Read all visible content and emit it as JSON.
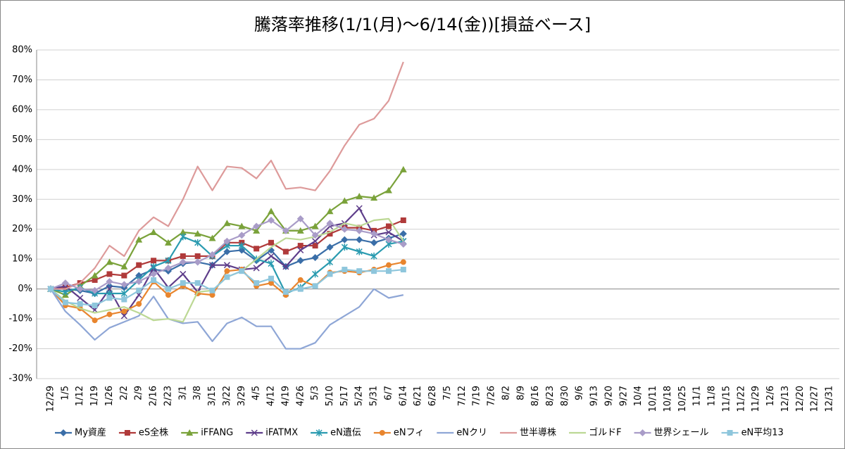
{
  "chart_data": {
    "type": "line",
    "title": "騰落率推移(1/1(月)～6/14(金))[損益ベース]",
    "categories": [
      "12/29",
      "1/5",
      "1/12",
      "1/19",
      "1/26",
      "2/2",
      "2/9",
      "2/16",
      "2/23",
      "3/1",
      "3/8",
      "3/15",
      "3/22",
      "3/29",
      "4/5",
      "4/12",
      "4/19",
      "4/26",
      "5/3",
      "5/10",
      "5/17",
      "5/24",
      "5/31",
      "6/7",
      "6/14",
      "6/21",
      "6/28",
      "7/5",
      "7/12",
      "7/19",
      "7/26",
      "8/2",
      "8/9",
      "8/16",
      "8/23",
      "8/30",
      "9/6",
      "9/13",
      "9/20",
      "9/27",
      "10/4",
      "10/11",
      "10/18",
      "10/25",
      "11/1",
      "11/8",
      "11/15",
      "11/22",
      "11/29",
      "12/6",
      "12/13",
      "12/20",
      "12/27",
      "12/31"
    ],
    "ylim": [
      -30,
      80
    ],
    "yticks": [
      {
        "value": -30,
        "label": "-30%"
      },
      {
        "value": -20,
        "label": "-20%"
      },
      {
        "value": -10,
        "label": "-10%"
      },
      {
        "value": 0,
        "label": "0%"
      },
      {
        "value": 10,
        "label": "10%"
      },
      {
        "value": 20,
        "label": "20%"
      },
      {
        "value": 30,
        "label": "30%"
      },
      {
        "value": 40,
        "label": "40%"
      },
      {
        "value": 50,
        "label": "50%"
      },
      {
        "value": 60,
        "label": "60%"
      },
      {
        "value": 70,
        "label": "70%"
      },
      {
        "value": 80,
        "label": "80%"
      }
    ],
    "grid": true,
    "legend": "bottom",
    "series": [
      {
        "name": "My資産",
        "color": "#3a6ea8",
        "marker": "diamond",
        "values": [
          0,
          0,
          -0.5,
          -1.5,
          1,
          0.5,
          4.5,
          6.5,
          6,
          8.5,
          9,
          8,
          12.5,
          13,
          9.5,
          13,
          7.5,
          9.5,
          10.5,
          14,
          16.5,
          16.5,
          15.5,
          17,
          18.5,
          null,
          null,
          null,
          null,
          null,
          null,
          null,
          null,
          null,
          null,
          null,
          null,
          null,
          null,
          null,
          null,
          null,
          null,
          null,
          null,
          null,
          null,
          null,
          null,
          null,
          null,
          null,
          null,
          null
        ]
      },
      {
        "name": "eS全株",
        "color": "#b03a3a",
        "marker": "square",
        "values": [
          0,
          0.5,
          2,
          3,
          5,
          4.5,
          8,
          9.5,
          9.5,
          11,
          11,
          11,
          15.5,
          15.5,
          13.5,
          15.5,
          12.5,
          14.5,
          14.5,
          18.5,
          20.5,
          20.5,
          19.5,
          21,
          23,
          null,
          null,
          null,
          null,
          null,
          null,
          null,
          null,
          null,
          null,
          null,
          null,
          null,
          null,
          null,
          null,
          null,
          null,
          null,
          null,
          null,
          null,
          null,
          null,
          null,
          null,
          null,
          null,
          null
        ]
      },
      {
        "name": "iFFANG",
        "color": "#7aa23a",
        "marker": "triangle",
        "values": [
          0,
          -2,
          1,
          4.5,
          9,
          7.5,
          16.5,
          19,
          15.5,
          19,
          18.5,
          17,
          22,
          21,
          19.5,
          26,
          19.5,
          19.5,
          21,
          26,
          29.5,
          31,
          30.5,
          33,
          40,
          null,
          null,
          null,
          null,
          null,
          null,
          null,
          null,
          null,
          null,
          null,
          null,
          null,
          null,
          null,
          null,
          null,
          null,
          null,
          null,
          null,
          null,
          null,
          null,
          null,
          null,
          null,
          null,
          null
        ]
      },
      {
        "name": "iFATMX",
        "color": "#5e3d8a",
        "marker": "x",
        "values": [
          0,
          1,
          -3,
          -7,
          0,
          -9,
          -2,
          7,
          0.5,
          5,
          -1,
          8,
          8,
          6.5,
          7,
          11,
          7.5,
          13,
          16,
          21,
          22,
          27,
          18,
          19,
          16,
          null,
          null,
          null,
          null,
          null,
          null,
          null,
          null,
          null,
          null,
          null,
          null,
          null,
          null,
          null,
          null,
          null,
          null,
          null,
          null,
          null,
          null,
          null,
          null,
          null,
          null,
          null,
          null,
          null
        ]
      },
      {
        "name": "eN遺伝",
        "color": "#2a9bb0",
        "marker": "star",
        "values": [
          0,
          -1,
          0.5,
          -1.5,
          -1.5,
          -1.5,
          3,
          7.5,
          9.5,
          17.5,
          15.5,
          11,
          14.5,
          14.5,
          10,
          8.5,
          -1.5,
          0.5,
          5,
          9,
          14,
          12.5,
          11,
          15,
          16,
          null,
          null,
          null,
          null,
          null,
          null,
          null,
          null,
          null,
          null,
          null,
          null,
          null,
          null,
          null,
          null,
          null,
          null,
          null,
          null,
          null,
          null,
          null,
          null,
          null,
          null,
          null,
          null,
          null
        ]
      },
      {
        "name": "eNフィ",
        "color": "#e8852e",
        "marker": "circle",
        "values": [
          0,
          -5.5,
          -6.5,
          -10.5,
          -8.5,
          -7.5,
          -5,
          2.5,
          -2,
          1,
          -1.5,
          -2,
          6,
          6.5,
          1,
          2,
          -2,
          3,
          1,
          5.5,
          6,
          5.5,
          6.5,
          8,
          9,
          null,
          null,
          null,
          null,
          null,
          null,
          null,
          null,
          null,
          null,
          null,
          null,
          null,
          null,
          null,
          null,
          null,
          null,
          null,
          null,
          null,
          null,
          null,
          null,
          null,
          null,
          null,
          null,
          null
        ]
      },
      {
        "name": "eNクリ",
        "color": "#8ea6d6",
        "marker": "dash",
        "values": [
          0,
          -7.5,
          -12,
          -17,
          -13,
          -11,
          -9,
          -2.5,
          -10,
          -11.5,
          -11,
          -17.5,
          -11.5,
          -9.5,
          -12.5,
          -12.5,
          -20,
          -20,
          -18,
          -12,
          -9,
          -6,
          0,
          -3,
          -2,
          null,
          null,
          null,
          null,
          null,
          null,
          null,
          null,
          null,
          null,
          null,
          null,
          null,
          null,
          null,
          null,
          null,
          null,
          null,
          null,
          null,
          null,
          null,
          null,
          null,
          null,
          null,
          null,
          null
        ]
      },
      {
        "name": "世半導株",
        "color": "#dd9a9a",
        "marker": "none",
        "values": [
          0,
          0,
          2,
          7,
          14.5,
          11,
          19.5,
          24,
          21,
          30,
          41,
          33,
          41,
          40.5,
          37,
          43,
          33.5,
          34,
          33,
          39.5,
          48,
          55,
          57,
          63,
          76,
          null,
          null,
          null,
          null,
          null,
          null,
          null,
          null,
          null,
          null,
          null,
          null,
          null,
          null,
          null,
          null,
          null,
          null,
          null,
          null,
          null,
          null,
          null,
          null,
          null,
          null,
          null,
          null,
          null
        ]
      },
      {
        "name": "ゴルドF",
        "color": "#bcd894",
        "marker": "none",
        "values": [
          0,
          -4,
          -6.5,
          -8,
          -7,
          -6,
          -8,
          -10.5,
          -10,
          -11,
          -1,
          -0.5,
          4,
          6,
          10,
          14,
          17,
          16.5,
          17.5,
          19,
          22,
          21,
          23,
          23.5,
          16,
          null,
          null,
          null,
          null,
          null,
          null,
          null,
          null,
          null,
          null,
          null,
          null,
          null,
          null,
          null,
          null,
          null,
          null,
          null,
          null,
          null,
          null,
          null,
          null,
          null,
          null,
          null,
          null,
          null
        ]
      },
      {
        "name": "世界シェール",
        "color": "#a99cc8",
        "marker": "diamond",
        "values": [
          0,
          2,
          0,
          -0.5,
          2.5,
          1.5,
          2.5,
          5,
          7,
          9,
          9,
          11.5,
          16,
          18,
          21,
          23,
          19.5,
          23.5,
          18,
          22,
          20,
          19.5,
          18.5,
          16.5,
          15,
          null,
          null,
          null,
          null,
          null,
          null,
          null,
          null,
          null,
          null,
          null,
          null,
          null,
          null,
          null,
          null,
          null,
          null,
          null,
          null,
          null,
          null,
          null,
          null,
          null,
          null,
          null,
          null,
          null
        ]
      },
      {
        "name": "eN平均13",
        "color": "#8ec6dc",
        "marker": "square",
        "values": [
          0,
          -4.5,
          -5,
          -5.5,
          -3,
          -3.5,
          -0.5,
          3,
          0,
          2,
          2,
          -0.5,
          4,
          6,
          2,
          3.5,
          -1,
          0,
          1,
          5,
          6.5,
          6,
          6,
          6,
          6.5,
          null,
          null,
          null,
          null,
          null,
          null,
          null,
          null,
          null,
          null,
          null,
          null,
          null,
          null,
          null,
          null,
          null,
          null,
          null,
          null,
          null,
          null,
          null,
          null,
          null,
          null,
          null,
          null,
          null
        ]
      }
    ]
  }
}
